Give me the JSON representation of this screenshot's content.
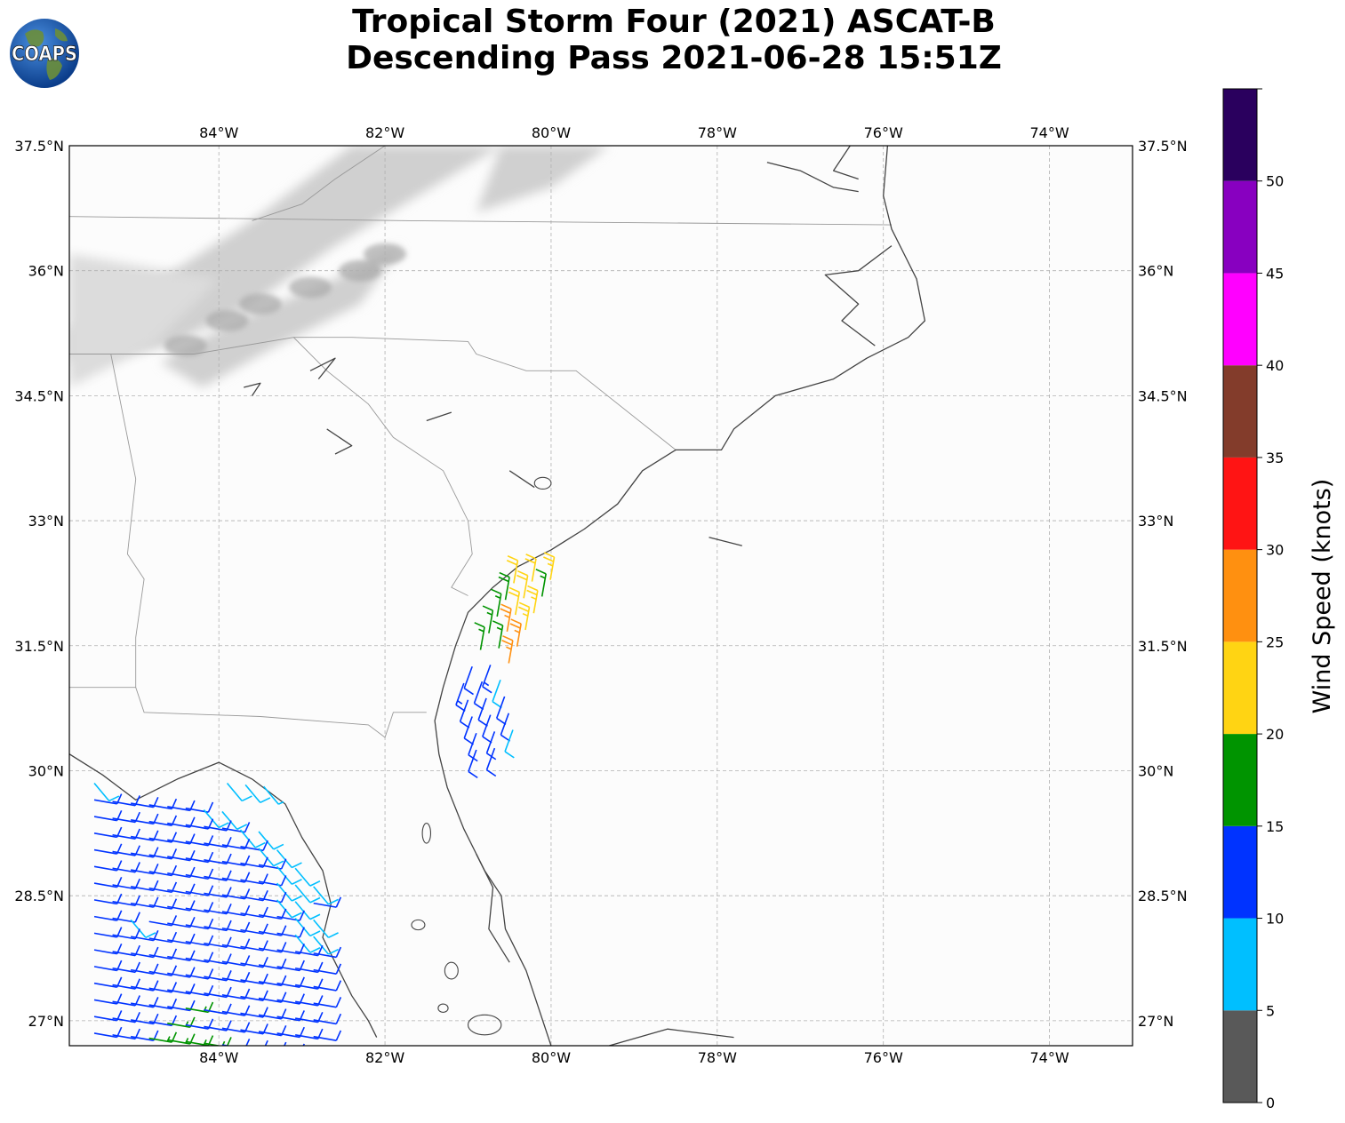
{
  "title": {
    "line1": "Tropical Storm Four (2021) ASCAT-B",
    "line2": "Descending Pass 2021-06-28 15:51Z"
  },
  "logo": {
    "text": "COAPS",
    "icon": "globe-icon"
  },
  "map": {
    "lon_range": [
      -85.8,
      -73.0
    ],
    "lat_range": [
      26.7,
      37.5
    ],
    "lon_ticks": [
      {
        "value": -84,
        "label": "84°W"
      },
      {
        "value": -82,
        "label": "82°W"
      },
      {
        "value": -80,
        "label": "80°W"
      },
      {
        "value": -78,
        "label": "78°W"
      },
      {
        "value": -76,
        "label": "76°W"
      },
      {
        "value": -74,
        "label": "74°W"
      }
    ],
    "lat_ticks": [
      {
        "value": 37.5,
        "label": "37.5°N"
      },
      {
        "value": 36.0,
        "label": "36°N"
      },
      {
        "value": 34.5,
        "label": "34.5°N"
      },
      {
        "value": 33.0,
        "label": "33°N"
      },
      {
        "value": 31.5,
        "label": "31.5°N"
      },
      {
        "value": 30.0,
        "label": "30°N"
      },
      {
        "value": 28.5,
        "label": "28.5°N"
      },
      {
        "value": 27.0,
        "label": "27°N"
      }
    ],
    "grid": true,
    "colors": {
      "coast": "#444444",
      "border": "#999999",
      "terrain": "#c8c8c8",
      "grid": "#b0b0b0"
    }
  },
  "colorbar": {
    "label": "Wind Speed (knots)",
    "bins": [
      {
        "from": 0,
        "to": 5,
        "color": "#595959",
        "label": "0"
      },
      {
        "from": 5,
        "to": 10,
        "color": "#00bfff",
        "label": "5"
      },
      {
        "from": 10,
        "to": 15,
        "color": "#0033ff",
        "label": "10"
      },
      {
        "from": 15,
        "to": 20,
        "color": "#009400",
        "label": "15"
      },
      {
        "from": 20,
        "to": 25,
        "color": "#ffd413",
        "label": "20"
      },
      {
        "from": 25,
        "to": 30,
        "color": "#ff9010",
        "label": "25"
      },
      {
        "from": 30,
        "to": 35,
        "color": "#ff1414",
        "label": "30"
      },
      {
        "from": 35,
        "to": 40,
        "color": "#833c2b",
        "label": "35"
      },
      {
        "from": 40,
        "to": 45,
        "color": "#ff00ff",
        "label": "40"
      },
      {
        "from": 45,
        "to": 50,
        "color": "#8800c0",
        "label": "45"
      },
      {
        "from": 50,
        "to": 55,
        "color": "#2a005e",
        "label": "50"
      }
    ]
  },
  "chart_data": {
    "type": "wind-barbs",
    "units": "knots",
    "swaths": [
      {
        "name": "east",
        "lon": [
          -80.9,
          -79.9
        ],
        "lat": [
          30.2,
          32.3
        ],
        "rows": [
          {
            "lat": 32.25,
            "lon_start": -80.45,
            "speeds": [
              22,
              22,
              23
            ]
          },
          {
            "lat": 32.05,
            "lon_start": -80.55,
            "speeds": [
              18,
              22,
              17
            ]
          },
          {
            "lat": 31.85,
            "lon_start": -80.65,
            "speeds": [
              17,
              22,
              23
            ]
          },
          {
            "lat": 31.65,
            "lon_start": -80.75,
            "speeds": [
              16,
              26,
              23
            ]
          },
          {
            "lat": 31.45,
            "lon_start": -80.85,
            "speeds": [
              16,
              17,
              27
            ]
          },
          {
            "lat": 31.25,
            "lon_start": -80.95,
            "speeds": [
              12,
              13,
              26
            ]
          },
          {
            "lat": 31.05,
            "lon_start": -81.05,
            "speeds": [
              13,
              12,
              8
            ]
          },
          {
            "lat": 30.85,
            "lon_start": -81.0,
            "speeds": [
              12,
              11,
              11
            ]
          },
          {
            "lat": 30.65,
            "lon_start": -80.95,
            "speeds": [
              11,
              12,
              12
            ]
          },
          {
            "lat": 30.45,
            "lon_start": -80.9,
            "speeds": [
              11,
              12,
              9
            ]
          },
          {
            "lat": 30.25,
            "lon_start": -80.9,
            "speeds": [
              11,
              11
            ]
          }
        ]
      },
      {
        "name": "gulf",
        "lon": [
          -85.8,
          -82.6
        ],
        "lat": [
          26.8,
          29.9
        ],
        "rows": [
          {
            "lat": 29.85,
            "lon_start": -85.5,
            "speeds": [
              8
            ]
          },
          {
            "lat": 29.85,
            "lon_start": -83.9,
            "speeds": [
              8,
              8,
              7
            ]
          },
          {
            "lat": 29.65,
            "lon_start": -85.5,
            "speeds": [
              11,
              11,
              11,
              12,
              12,
              11,
              8,
              9
            ]
          },
          {
            "lat": 29.45,
            "lon_start": -85.5,
            "speeds": [
              11,
              12,
              12,
              12,
              11,
              12,
              11,
              11,
              8,
              8
            ]
          },
          {
            "lat": 29.25,
            "lon_start": -85.5,
            "speeds": [
              11,
              12,
              12,
              11,
              11,
              11,
              12,
              11,
              11,
              8,
              8
            ]
          },
          {
            "lat": 29.05,
            "lon_start": -85.5,
            "speeds": [
              12,
              12,
              11,
              12,
              12,
              12,
              11,
              12,
              11,
              11,
              9,
              8
            ]
          },
          {
            "lat": 28.85,
            "lon_start": -85.5,
            "speeds": [
              12,
              11,
              12,
              12,
              11,
              12,
              12,
              11,
              11,
              12,
              8,
              8,
              9
            ]
          },
          {
            "lat": 28.65,
            "lon_start": -85.5,
            "speeds": [
              11,
              12,
              12,
              12,
              11,
              12,
              11,
              12,
              12,
              11,
              8,
              8,
              12
            ]
          },
          {
            "lat": 28.45,
            "lon_start": -85.5,
            "speeds": [
              12,
              12,
              11,
              11,
              12,
              12,
              11,
              12,
              11,
              12,
              11,
              8,
              8
            ]
          },
          {
            "lat": 28.25,
            "lon_start": -85.5,
            "speeds": [
              11,
              12,
              9,
              12,
              11,
              12,
              12,
              11,
              12,
              11,
              11,
              8,
              9
            ]
          },
          {
            "lat": 28.05,
            "lon_start": -85.5,
            "speeds": [
              12,
              11,
              12,
              12,
              12,
              11,
              12,
              11,
              11,
              12,
              11,
              12,
              11
            ]
          },
          {
            "lat": 27.85,
            "lon_start": -85.5,
            "speeds": [
              11,
              12,
              12,
              11,
              12,
              12,
              11,
              12,
              12,
              11,
              12,
              11,
              12
            ]
          },
          {
            "lat": 27.65,
            "lon_start": -85.5,
            "speeds": [
              12,
              11,
              12,
              12,
              11,
              12,
              12,
              11,
              12,
              12,
              11,
              12,
              11
            ]
          },
          {
            "lat": 27.45,
            "lon_start": -85.5,
            "speeds": [
              11,
              12,
              11,
              12,
              12,
              12,
              11,
              12,
              11,
              12,
              12,
              11,
              12
            ]
          },
          {
            "lat": 27.25,
            "lon_start": -85.5,
            "speeds": [
              12,
              11,
              12,
              11,
              12,
              16,
              12,
              11,
              12,
              11,
              12,
              12,
              11
            ]
          },
          {
            "lat": 27.05,
            "lon_start": -85.5,
            "speeds": [
              11,
              12,
              12,
              12,
              16,
              12,
              12,
              11,
              12,
              12,
              11,
              12,
              11
            ]
          },
          {
            "lat": 26.85,
            "lon_start": -85.5,
            "speeds": [
              12,
              11,
              12,
              16,
              17,
              16,
              16,
              12,
              11,
              12,
              12,
              11,
              12
            ]
          }
        ]
      }
    ]
  }
}
